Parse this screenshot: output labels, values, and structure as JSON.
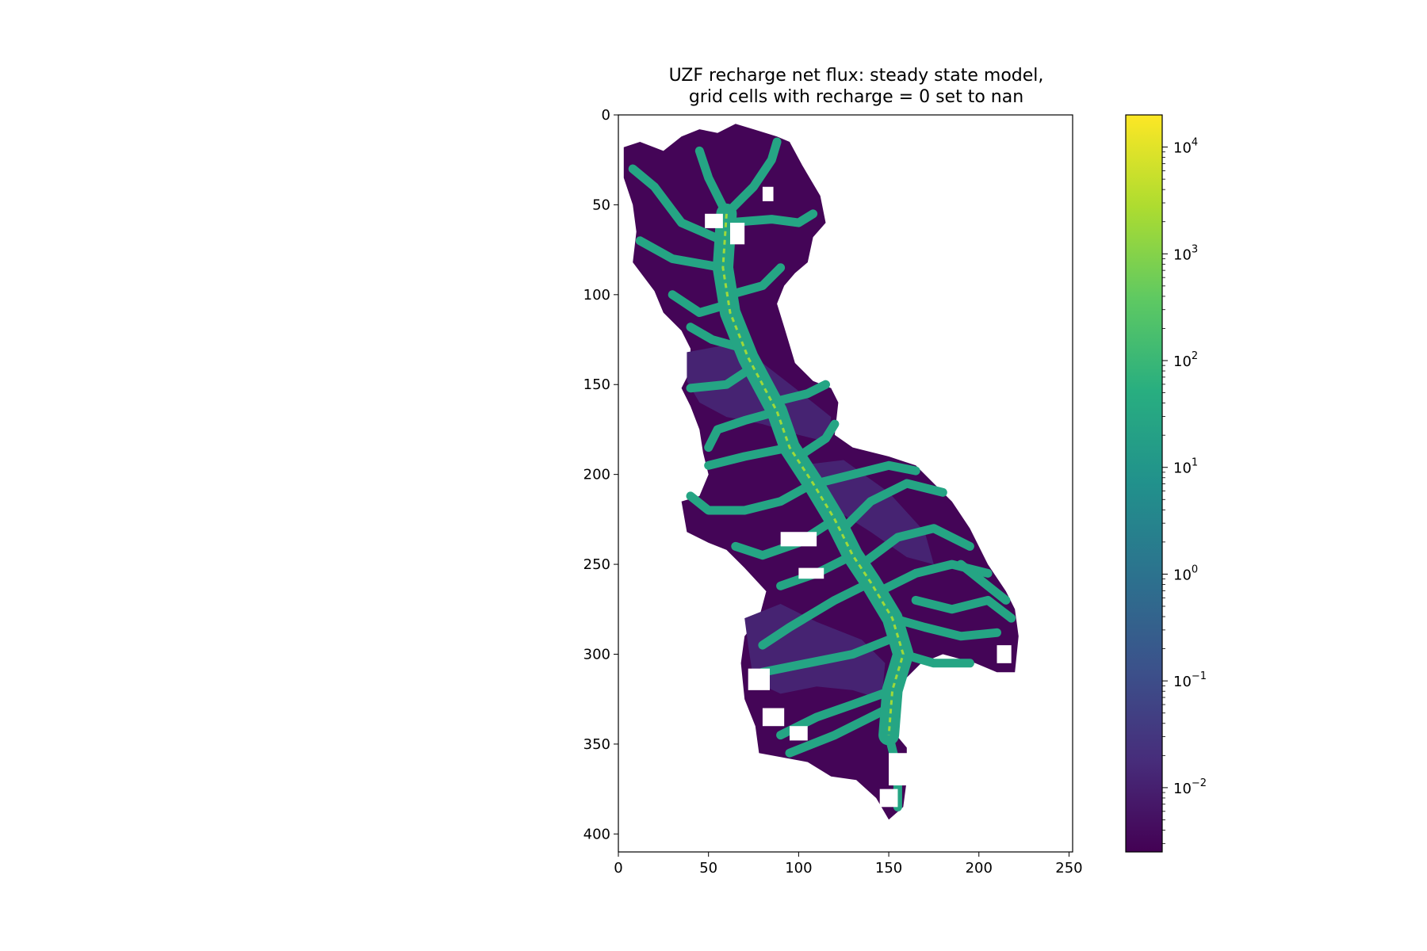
{
  "chart_data": {
    "type": "heatmap",
    "title_lines": [
      "UZF recharge net flux: steady state model,",
      "grid cells with recharge = 0 set to nan"
    ],
    "xlabel": "",
    "ylabel": "",
    "xlim": [
      0,
      252
    ],
    "ylim": [
      410,
      0
    ],
    "x_ticks": [
      0,
      50,
      100,
      150,
      200,
      250
    ],
    "y_ticks": [
      0,
      50,
      100,
      150,
      200,
      250,
      300,
      350,
      400
    ],
    "colorbar": {
      "scale": "log",
      "colormap": "viridis",
      "range": [
        0.0025,
        20000
      ],
      "ticks": [
        {
          "base": "10",
          "exp": "4",
          "value": 10000
        },
        {
          "base": "10",
          "exp": "3",
          "value": 1000
        },
        {
          "base": "10",
          "exp": "2",
          "value": 100
        },
        {
          "base": "10",
          "exp": "1",
          "value": 10
        },
        {
          "base": "10",
          "exp": "0",
          "value": 1
        },
        {
          "base": "10",
          "exp": "−1",
          "value": 0.1
        },
        {
          "base": "10",
          "exp": "−2",
          "value": 0.01
        }
      ]
    },
    "nan_color": "#ffffff",
    "value_levels": {
      "upland": 0.003,
      "lowland": 0.012,
      "stream": 30,
      "main_channel": 2000
    },
    "domain_outline": [
      [
        3,
        18
      ],
      [
        12,
        15
      ],
      [
        25,
        20
      ],
      [
        35,
        12
      ],
      [
        45,
        8
      ],
      [
        55,
        10
      ],
      [
        65,
        5
      ],
      [
        75,
        8
      ],
      [
        88,
        12
      ],
      [
        95,
        15
      ],
      [
        102,
        28
      ],
      [
        112,
        45
      ],
      [
        115,
        60
      ],
      [
        108,
        68
      ],
      [
        105,
        82
      ],
      [
        98,
        88
      ],
      [
        92,
        95
      ],
      [
        88,
        105
      ],
      [
        92,
        118
      ],
      [
        95,
        128
      ],
      [
        98,
        138
      ],
      [
        108,
        148
      ],
      [
        118,
        152
      ],
      [
        122,
        160
      ],
      [
        120,
        178
      ],
      [
        130,
        185
      ],
      [
        150,
        190
      ],
      [
        165,
        195
      ],
      [
        175,
        205
      ],
      [
        185,
        215
      ],
      [
        195,
        230
      ],
      [
        205,
        250
      ],
      [
        215,
        265
      ],
      [
        220,
        275
      ],
      [
        222,
        290
      ],
      [
        220,
        310
      ],
      [
        210,
        310
      ],
      [
        198,
        305
      ],
      [
        180,
        300
      ],
      [
        168,
        305
      ],
      [
        155,
        318
      ],
      [
        150,
        340
      ],
      [
        160,
        352
      ],
      [
        160,
        370
      ],
      [
        158,
        385
      ],
      [
        150,
        392
      ],
      [
        143,
        380
      ],
      [
        132,
        370
      ],
      [
        118,
        368
      ],
      [
        105,
        360
      ],
      [
        78,
        355
      ],
      [
        76,
        340
      ],
      [
        70,
        325
      ],
      [
        68,
        305
      ],
      [
        70,
        290
      ],
      [
        78,
        280
      ],
      [
        82,
        265
      ],
      [
        70,
        252
      ],
      [
        60,
        242
      ],
      [
        50,
        238
      ],
      [
        38,
        232
      ],
      [
        35,
        215
      ],
      [
        45,
        212
      ],
      [
        50,
        200
      ],
      [
        47,
        188
      ],
      [
        45,
        175
      ],
      [
        40,
        162
      ],
      [
        35,
        152
      ],
      [
        40,
        142
      ],
      [
        40,
        130
      ],
      [
        35,
        120
      ],
      [
        25,
        110
      ],
      [
        20,
        98
      ],
      [
        8,
        82
      ],
      [
        10,
        65
      ],
      [
        8,
        50
      ],
      [
        3,
        35
      ]
    ],
    "lowland_zones": [
      [
        [
          38,
          132
        ],
        [
          60,
          128
        ],
        [
          80,
          138
        ],
        [
          98,
          152
        ],
        [
          118,
          168
        ],
        [
          116,
          182
        ],
        [
          100,
          178
        ],
        [
          80,
          172
        ],
        [
          60,
          168
        ],
        [
          45,
          160
        ],
        [
          38,
          148
        ]
      ],
      [
        [
          70,
          280
        ],
        [
          90,
          272
        ],
        [
          110,
          282
        ],
        [
          135,
          292
        ],
        [
          148,
          305
        ],
        [
          146,
          325
        ],
        [
          130,
          320
        ],
        [
          110,
          318
        ],
        [
          90,
          322
        ],
        [
          75,
          315
        ],
        [
          72,
          295
        ]
      ],
      [
        [
          100,
          195
        ],
        [
          125,
          192
        ],
        [
          150,
          210
        ],
        [
          170,
          232
        ],
        [
          175,
          250
        ],
        [
          160,
          246
        ],
        [
          140,
          232
        ],
        [
          118,
          218
        ],
        [
          105,
          206
        ]
      ]
    ],
    "main_channel": [
      [
        60,
        55
      ],
      [
        58,
        85
      ],
      [
        62,
        110
      ],
      [
        72,
        135
      ],
      [
        80,
        150
      ],
      [
        88,
        165
      ],
      [
        95,
        185
      ],
      [
        108,
        205
      ],
      [
        120,
        225
      ],
      [
        130,
        245
      ],
      [
        140,
        260
      ],
      [
        152,
        280
      ],
      [
        158,
        300
      ],
      [
        152,
        320
      ],
      [
        150,
        345
      ]
    ],
    "streams": [
      [
        [
          60,
          55
        ],
        [
          50,
          35
        ],
        [
          45,
          20
        ]
      ],
      [
        [
          60,
          55
        ],
        [
          75,
          40
        ],
        [
          85,
          25
        ],
        [
          88,
          15
        ]
      ],
      [
        [
          58,
          70
        ],
        [
          35,
          60
        ],
        [
          20,
          40
        ],
        [
          8,
          30
        ]
      ],
      [
        [
          58,
          85
        ],
        [
          30,
          80
        ],
        [
          12,
          70
        ]
      ],
      [
        [
          60,
          60
        ],
        [
          85,
          58
        ],
        [
          100,
          60
        ],
        [
          108,
          55
        ]
      ],
      [
        [
          62,
          105
        ],
        [
          45,
          110
        ],
        [
          30,
          100
        ]
      ],
      [
        [
          62,
          100
        ],
        [
          80,
          95
        ],
        [
          90,
          85
        ]
      ],
      [
        [
          70,
          130
        ],
        [
          52,
          125
        ],
        [
          40,
          118
        ]
      ],
      [
        [
          75,
          140
        ],
        [
          60,
          150
        ],
        [
          40,
          152
        ]
      ],
      [
        [
          88,
          165
        ],
        [
          70,
          170
        ],
        [
          55,
          175
        ],
        [
          50,
          185
        ]
      ],
      [
        [
          85,
          160
        ],
        [
          105,
          155
        ],
        [
          115,
          150
        ]
      ],
      [
        [
          95,
          185
        ],
        [
          70,
          190
        ],
        [
          50,
          195
        ]
      ],
      [
        [
          100,
          190
        ],
        [
          115,
          180
        ],
        [
          120,
          172
        ]
      ],
      [
        [
          108,
          205
        ],
        [
          90,
          215
        ],
        [
          70,
          220
        ],
        [
          50,
          220
        ],
        [
          40,
          212
        ]
      ],
      [
        [
          110,
          205
        ],
        [
          130,
          200
        ],
        [
          150,
          195
        ],
        [
          165,
          198
        ]
      ],
      [
        [
          120,
          225
        ],
        [
          100,
          238
        ],
        [
          80,
          245
        ],
        [
          65,
          240
        ]
      ],
      [
        [
          125,
          230
        ],
        [
          140,
          215
        ],
        [
          160,
          205
        ],
        [
          180,
          210
        ]
      ],
      [
        [
          130,
          245
        ],
        [
          110,
          255
        ],
        [
          90,
          262
        ]
      ],
      [
        [
          135,
          250
        ],
        [
          155,
          235
        ],
        [
          175,
          230
        ],
        [
          195,
          240
        ]
      ],
      [
        [
          140,
          260
        ],
        [
          120,
          270
        ],
        [
          95,
          285
        ],
        [
          80,
          295
        ]
      ],
      [
        [
          145,
          265
        ],
        [
          165,
          255
        ],
        [
          185,
          250
        ],
        [
          205,
          255
        ]
      ],
      [
        [
          152,
          280
        ],
        [
          170,
          285
        ],
        [
          190,
          290
        ],
        [
          210,
          288
        ]
      ],
      [
        [
          155,
          290
        ],
        [
          130,
          300
        ],
        [
          105,
          305
        ],
        [
          80,
          310
        ]
      ],
      [
        [
          158,
          300
        ],
        [
          175,
          305
        ],
        [
          195,
          305
        ]
      ],
      [
        [
          152,
          320
        ],
        [
          130,
          328
        ],
        [
          110,
          335
        ],
        [
          90,
          345
        ]
      ],
      [
        [
          150,
          330
        ],
        [
          120,
          345
        ],
        [
          95,
          355
        ]
      ],
      [
        [
          150,
          345
        ],
        [
          155,
          365
        ],
        [
          155,
          385
        ]
      ],
      [
        [
          165,
          270
        ],
        [
          185,
          275
        ],
        [
          205,
          270
        ],
        [
          218,
          280
        ]
      ],
      [
        [
          190,
          250
        ],
        [
          205,
          262
        ],
        [
          215,
          270
        ]
      ]
    ],
    "dry_patches": [
      [
        48,
        55,
        10,
        8
      ],
      [
        62,
        60,
        8,
        12
      ],
      [
        80,
        40,
        6,
        8
      ],
      [
        90,
        232,
        20,
        8
      ],
      [
        100,
        252,
        14,
        6
      ],
      [
        150,
        355,
        12,
        18
      ],
      [
        145,
        375,
        10,
        10
      ],
      [
        80,
        330,
        12,
        10
      ],
      [
        72,
        308,
        12,
        12
      ],
      [
        210,
        295,
        8,
        10
      ],
      [
        95,
        340,
        10,
        8
      ]
    ]
  }
}
